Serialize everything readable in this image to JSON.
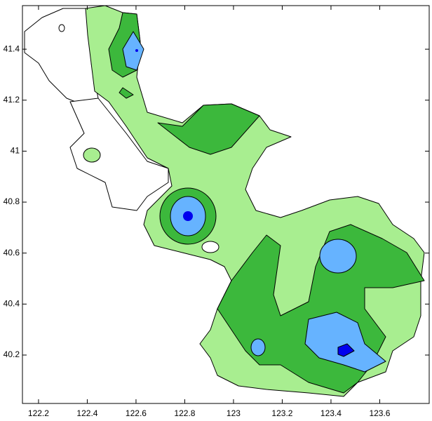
{
  "map": {
    "xlim": [
      122.134,
      123.803
    ],
    "ylim": [
      40.01,
      41.571
    ],
    "xticks": [
      122.2,
      122.4,
      122.6,
      122.8,
      123,
      123.2,
      123.4,
      123.6
    ],
    "yticks": [
      40.2,
      40.4,
      40.6,
      40.8,
      41,
      41.2,
      41.4
    ]
  }
}
